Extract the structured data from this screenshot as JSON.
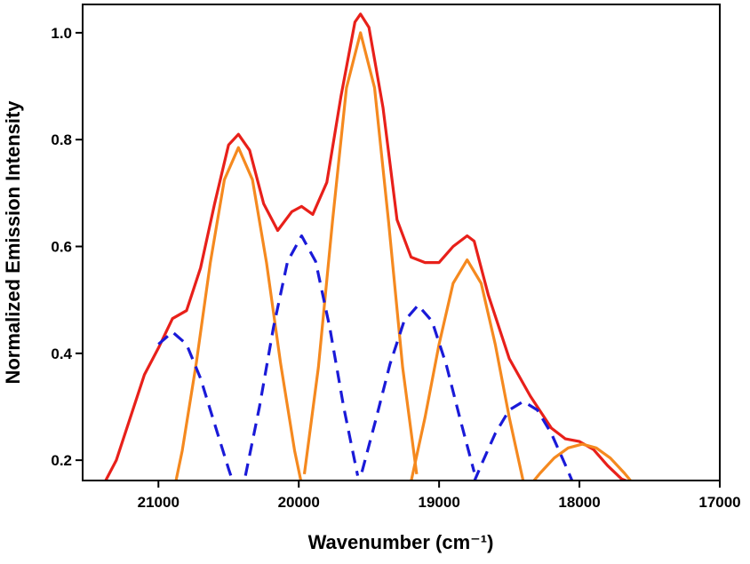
{
  "chart_data": {
    "type": "line",
    "xlabel": "Wavenumber (cm⁻¹)",
    "ylabel": "Normalized Emission Intensity",
    "xlim": [
      21540,
      17000
    ],
    "ylim": [
      0.162,
      1.053
    ],
    "xticks": [
      21000,
      20000,
      19000,
      18000,
      17000
    ],
    "yticks": [
      0.2,
      0.4,
      0.6,
      0.8,
      {
        "value": 1,
        "label": "1.0"
      }
    ],
    "series": [
      {
        "color": "#e8201a",
        "dashed": false,
        "x": [
          21380,
          21300,
          21200,
          21100,
          21000,
          20900,
          20800,
          20700,
          20600,
          20500,
          20430,
          20350,
          20250,
          20150,
          20050,
          19980,
          19900,
          19800,
          19700,
          19600,
          19560,
          19500,
          19400,
          19300,
          19200,
          19100,
          19000,
          18900,
          18800,
          18750,
          18650,
          18500,
          18350,
          18200,
          18100,
          18000,
          17900,
          17800,
          17700,
          17650
        ],
        "values": [
          0.16,
          0.2,
          0.28,
          0.36,
          0.41,
          0.465,
          0.48,
          0.56,
          0.68,
          0.79,
          0.81,
          0.78,
          0.68,
          0.63,
          0.665,
          0.675,
          0.66,
          0.72,
          0.88,
          1.02,
          1.035,
          1.01,
          0.86,
          0.65,
          0.58,
          0.57,
          0.57,
          0.6,
          0.62,
          0.61,
          0.51,
          0.39,
          0.32,
          0.26,
          0.24,
          0.235,
          0.22,
          0.19,
          0.165,
          0.16
        ]
      },
      {
        "color": "#f5891f",
        "dashed": false,
        "x": [
          20880,
          20830,
          20730,
          20630,
          20530,
          20430,
          20330,
          20230,
          20130,
          20030,
          19980
        ],
        "values": [
          0.155,
          0.218,
          0.382,
          0.57,
          0.725,
          0.785,
          0.725,
          0.57,
          0.382,
          0.218,
          0.155
        ]
      },
      {
        "color": "#f5891f",
        "dashed": false,
        "x": [
          19960,
          19860,
          19760,
          19660,
          19560,
          19460,
          19360,
          19260,
          19160
        ],
        "values": [
          0.174,
          0.374,
          0.646,
          0.897,
          1.0,
          0.897,
          0.646,
          0.374,
          0.174
        ]
      },
      {
        "color": "#f5891f",
        "dashed": false,
        "x": [
          19200,
          19100,
          19000,
          18900,
          18800,
          18700,
          18600,
          18500,
          18400
        ],
        "values": [
          0.16,
          0.28,
          0.417,
          0.531,
          0.575,
          0.531,
          0.417,
          0.28,
          0.16
        ]
      },
      {
        "color": "#f5891f",
        "dashed": false,
        "x": [
          18330,
          18280,
          18180,
          18080,
          17980,
          17880,
          17780,
          17680,
          17630
        ],
        "values": [
          0.16,
          0.176,
          0.204,
          0.223,
          0.23,
          0.223,
          0.204,
          0.176,
          0.16
        ]
      },
      {
        "color": "#1a1ad8",
        "dashed": true,
        "x": [
          21000,
          20900,
          20800,
          20700,
          20600,
          20500,
          20470
        ],
        "values": [
          0.417,
          0.44,
          0.417,
          0.353,
          0.268,
          0.184,
          0.16
        ]
      },
      {
        "color": "#1a1ad8",
        "dashed": true,
        "x": [
          20380,
          20280,
          20180,
          20080,
          19980,
          19880,
          19780,
          19680,
          19580
        ],
        "values": [
          0.171,
          0.3,
          0.449,
          0.572,
          0.62,
          0.572,
          0.449,
          0.3,
          0.171
        ]
      },
      {
        "color": "#1a1ad8",
        "dashed": true,
        "x": [
          19550,
          19450,
          19350,
          19250,
          19150,
          19050,
          18950,
          18850,
          18750
        ],
        "values": [
          0.178,
          0.277,
          0.38,
          0.46,
          0.49,
          0.46,
          0.38,
          0.277,
          0.178
        ]
      },
      {
        "color": "#1a1ad8",
        "dashed": true,
        "x": [
          18750,
          18700,
          18600,
          18500,
          18400,
          18300,
          18200,
          18100,
          18050
        ],
        "values": [
          0.16,
          0.191,
          0.25,
          0.294,
          0.31,
          0.294,
          0.25,
          0.191,
          0.16
        ]
      }
    ]
  }
}
